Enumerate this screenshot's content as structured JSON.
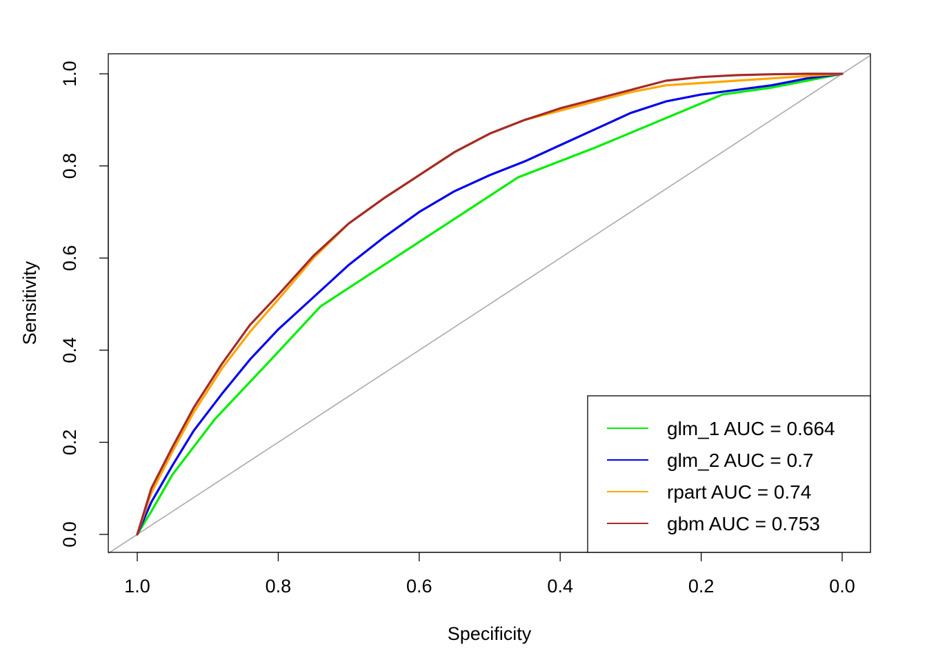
{
  "chart_data": {
    "type": "line",
    "title": "",
    "xlabel": "Specificity",
    "ylabel": "Sensitivity",
    "xlim": [
      1.0,
      0.0
    ],
    "ylim": [
      0.0,
      1.0
    ],
    "x_ticks": [
      1.0,
      0.8,
      0.6,
      0.4,
      0.2,
      0.0
    ],
    "x_tick_labels": [
      "1.0",
      "0.8",
      "0.6",
      "0.4",
      "0.2",
      "0.0"
    ],
    "y_ticks": [
      0.0,
      0.2,
      0.4,
      0.6,
      0.8,
      1.0
    ],
    "y_tick_labels": [
      "0.0",
      "0.2",
      "0.4",
      "0.6",
      "0.8",
      "1.0"
    ],
    "x_reversed": true,
    "grid": false,
    "legend_position": "bottom-right",
    "reference_line": {
      "from": [
        1.0,
        0.0
      ],
      "to": [
        0.0,
        1.0
      ],
      "color": "#aaaaaa"
    },
    "series": [
      {
        "name": "glm_1",
        "legend": "glm_1 AUC = 0.664",
        "auc": 0.664,
        "color": "#00ee00",
        "specificity": [
          1.0,
          0.98,
          0.95,
          0.89,
          0.81,
          0.74,
          0.6,
          0.46,
          0.35,
          0.17,
          0.1,
          0.05,
          0.0
        ],
        "sensitivity": [
          0.0,
          0.05,
          0.13,
          0.25,
          0.38,
          0.495,
          0.635,
          0.775,
          0.84,
          0.955,
          0.97,
          0.985,
          1.0
        ]
      },
      {
        "name": "glm_2",
        "legend": "glm_2 AUC = 0.7",
        "auc": 0.7,
        "color": "#0000ee",
        "specificity": [
          1.0,
          0.98,
          0.95,
          0.92,
          0.88,
          0.84,
          0.8,
          0.75,
          0.7,
          0.65,
          0.6,
          0.55,
          0.5,
          0.45,
          0.4,
          0.35,
          0.3,
          0.25,
          0.2,
          0.15,
          0.1,
          0.05,
          0.0
        ],
        "sensitivity": [
          0.0,
          0.07,
          0.15,
          0.225,
          0.305,
          0.38,
          0.445,
          0.515,
          0.585,
          0.645,
          0.7,
          0.745,
          0.78,
          0.81,
          0.845,
          0.88,
          0.915,
          0.94,
          0.955,
          0.965,
          0.975,
          0.99,
          1.0
        ]
      },
      {
        "name": "rpart",
        "legend": "rpart AUC = 0.74",
        "auc": 0.74,
        "color": "#ffa500",
        "specificity": [
          1.0,
          0.98,
          0.95,
          0.92,
          0.88,
          0.84,
          0.8,
          0.75,
          0.7,
          0.65,
          0.6,
          0.55,
          0.5,
          0.45,
          0.4,
          0.35,
          0.3,
          0.25,
          0.2,
          0.15,
          0.1,
          0.05,
          0.0
        ],
        "sensitivity": [
          0.0,
          0.09,
          0.18,
          0.265,
          0.36,
          0.44,
          0.51,
          0.6,
          0.675,
          0.73,
          0.78,
          0.83,
          0.87,
          0.9,
          0.92,
          0.94,
          0.96,
          0.975,
          0.98,
          0.985,
          0.99,
          0.995,
          1.0
        ]
      },
      {
        "name": "gbm",
        "legend": "gbm AUC = 0.753",
        "auc": 0.753,
        "color": "#a52a2a",
        "specificity": [
          1.0,
          0.98,
          0.95,
          0.92,
          0.88,
          0.84,
          0.8,
          0.75,
          0.7,
          0.65,
          0.6,
          0.55,
          0.5,
          0.45,
          0.4,
          0.35,
          0.3,
          0.25,
          0.2,
          0.15,
          0.1,
          0.05,
          0.0
        ],
        "sensitivity": [
          0.0,
          0.1,
          0.19,
          0.275,
          0.37,
          0.455,
          0.52,
          0.605,
          0.675,
          0.73,
          0.78,
          0.83,
          0.87,
          0.9,
          0.925,
          0.945,
          0.965,
          0.985,
          0.993,
          0.997,
          0.999,
          1.0,
          1.0
        ]
      }
    ]
  }
}
